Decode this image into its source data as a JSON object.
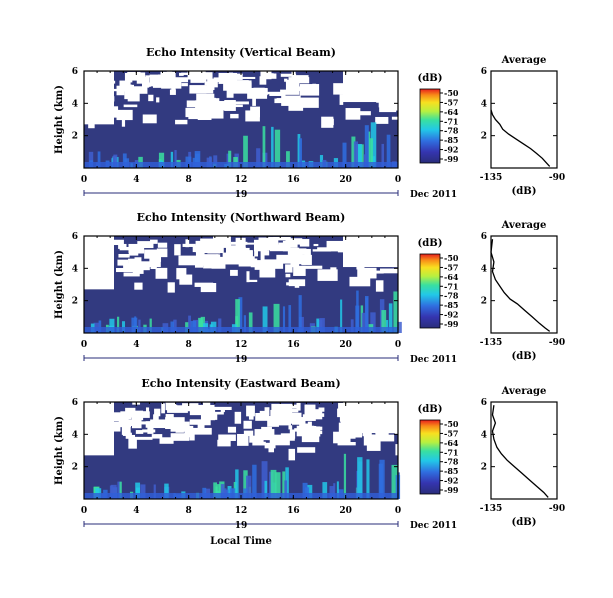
{
  "chart_data": [
    {
      "type": "heatmap",
      "title": "Echo Intensity (Vertical Beam)",
      "xlabel": "",
      "ylabel": "Height (km)",
      "x_ticks": [
        "0",
        "4",
        "8",
        "12",
        "16",
        "20",
        "0"
      ],
      "y_ticks": [
        "6",
        "4",
        "2"
      ],
      "xlim": [
        0,
        24
      ],
      "ylim": [
        0,
        6
      ],
      "date_day": "19",
      "date_month": "Dec 2011",
      "colorbar": {
        "unit": "(dB)",
        "ticks": [
          "-50",
          "-57",
          "-64",
          "-71",
          "-78",
          "-85",
          "-92",
          "-99"
        ]
      },
      "profile": {
        "title": "Average",
        "xlabel": "(dB)",
        "x_ticks": [
          "-135",
          "-90"
        ],
        "y_ticks": [
          "6",
          "4",
          "2"
        ],
        "xlim": [
          -135,
          -90
        ],
        "ylim": [
          0,
          6
        ],
        "x": [
          -135,
          -134,
          -132,
          -129,
          -127,
          -123,
          -118,
          -113,
          -108,
          -104,
          -100,
          -97,
          -95
        ],
        "y": [
          3.6,
          3.3,
          3.0,
          2.7,
          2.4,
          2.1,
          1.8,
          1.5,
          1.2,
          0.9,
          0.6,
          0.3,
          0.1
        ]
      }
    },
    {
      "type": "heatmap",
      "title": "Echo Intensity (Northward Beam)",
      "xlabel": "",
      "ylabel": "Height (km)",
      "x_ticks": [
        "0",
        "4",
        "8",
        "12",
        "16",
        "20",
        "0"
      ],
      "y_ticks": [
        "6",
        "4",
        "2"
      ],
      "xlim": [
        0,
        24
      ],
      "ylim": [
        0,
        6
      ],
      "date_day": "19",
      "date_month": "Dec 2011",
      "colorbar": {
        "unit": "(dB)",
        "ticks": [
          "-50",
          "-57",
          "-64",
          "-71",
          "-78",
          "-85",
          "-92",
          "-99"
        ]
      },
      "profile": {
        "title": "Average",
        "xlabel": "(dB)",
        "x_ticks": [
          "-135",
          "-90"
        ],
        "y_ticks": [
          "6",
          "4",
          "2"
        ],
        "xlim": [
          -135,
          -90
        ],
        "ylim": [
          0,
          6
        ],
        "x": [
          -134,
          -135,
          -133,
          -134,
          -132,
          -129,
          -126,
          -122,
          -117,
          -112,
          -107,
          -102,
          -98,
          -95
        ],
        "y": [
          5.8,
          5.0,
          4.4,
          3.8,
          3.3,
          2.9,
          2.5,
          2.1,
          1.8,
          1.4,
          1.0,
          0.6,
          0.3,
          0.1
        ]
      }
    },
    {
      "type": "heatmap",
      "title": "Echo Intensity (Eastward Beam)",
      "xlabel": "Local Time",
      "ylabel": "Height (km)",
      "x_ticks": [
        "0",
        "4",
        "8",
        "12",
        "16",
        "20",
        "0"
      ],
      "y_ticks": [
        "6",
        "4",
        "2"
      ],
      "xlim": [
        0,
        24
      ],
      "ylim": [
        0,
        6
      ],
      "date_day": "19",
      "date_month": "Dec 2011",
      "colorbar": {
        "unit": "(dB)",
        "ticks": [
          "-50",
          "-57",
          "-64",
          "-71",
          "-78",
          "-85",
          "-92",
          "-99"
        ]
      },
      "profile": {
        "title": "Average",
        "xlabel": "(dB)",
        "x_ticks": [
          "-135",
          "-90"
        ],
        "y_ticks": [
          "6",
          "4",
          "2"
        ],
        "xlim": [
          -135,
          -90
        ],
        "ylim": [
          0,
          6
        ],
        "x": [
          -133,
          -134,
          -132,
          -134,
          -133,
          -131,
          -128,
          -124,
          -119,
          -114,
          -109,
          -104,
          -99,
          -96
        ],
        "y": [
          5.8,
          5.2,
          4.7,
          4.2,
          3.7,
          3.2,
          2.8,
          2.4,
          2.0,
          1.6,
          1.2,
          0.8,
          0.4,
          0.1
        ]
      }
    }
  ]
}
